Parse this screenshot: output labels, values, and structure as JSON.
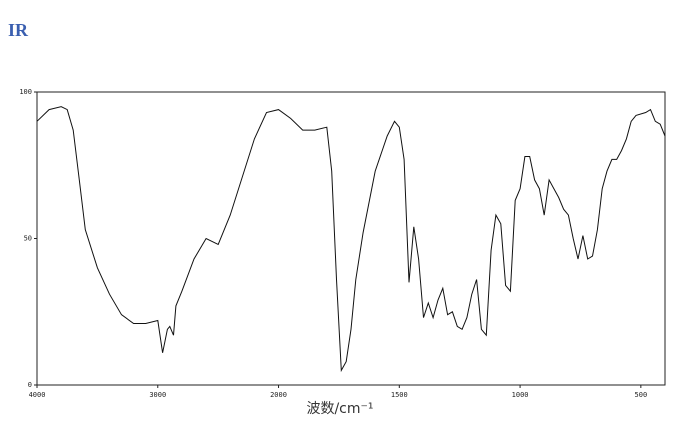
{
  "chart_data": {
    "type": "line",
    "title": "IR",
    "xlabel": "波数/cm⁻¹",
    "x": [
      4000,
      3900,
      3800,
      3750,
      3700,
      3650,
      3600,
      3500,
      3400,
      3300,
      3200,
      3100,
      3000,
      2960,
      2940,
      2920,
      2900,
      2870,
      2850,
      2800,
      2700,
      2600,
      2500,
      2400,
      2200,
      2100,
      2000,
      1950,
      1900,
      1850,
      1800,
      1780,
      1760,
      1740,
      1720,
      1700,
      1680,
      1650,
      1600,
      1550,
      1520,
      1500,
      1480,
      1460,
      1440,
      1420,
      1400,
      1380,
      1360,
      1340,
      1320,
      1300,
      1280,
      1260,
      1240,
      1220,
      1200,
      1180,
      1160,
      1140,
      1120,
      1100,
      1080,
      1060,
      1040,
      1020,
      1000,
      980,
      960,
      940,
      920,
      900,
      880,
      860,
      840,
      820,
      800,
      780,
      760,
      740,
      720,
      700,
      680,
      660,
      640,
      620,
      600,
      580,
      560,
      540,
      520,
      480,
      460,
      440,
      420,
      400
    ],
    "series": [
      {
        "name": "IR",
        "color": "#111111",
        "values": [
          90,
          94,
          95,
          94,
          87,
          70,
          53,
          40,
          31,
          24,
          21,
          21,
          22,
          11,
          15,
          19,
          20,
          17,
          27,
          32,
          43,
          50,
          48,
          58,
          84,
          93,
          94,
          91,
          87,
          87,
          88,
          73,
          36,
          5,
          8,
          19,
          36,
          52,
          73,
          85,
          90,
          88,
          77,
          35,
          54,
          43,
          23,
          28,
          23,
          29,
          33,
          24,
          25,
          20,
          19,
          23,
          31,
          36,
          19,
          17,
          46,
          58,
          55,
          34,
          32,
          63,
          67,
          78,
          78,
          70,
          67,
          58,
          70,
          67,
          64,
          60,
          58,
          50,
          43,
          51,
          43,
          44,
          53,
          67,
          73,
          77,
          77,
          80,
          84,
          90,
          92,
          93,
          94,
          90,
          89,
          85
        ]
      }
    ],
    "xlim": [
      4000,
      400
    ],
    "xbreak": 2000,
    "xticks": [
      4000,
      3000,
      2000,
      1500,
      1000,
      500
    ],
    "ylim": [
      0,
      100
    ],
    "yticks": [
      0,
      50,
      100
    ]
  }
}
